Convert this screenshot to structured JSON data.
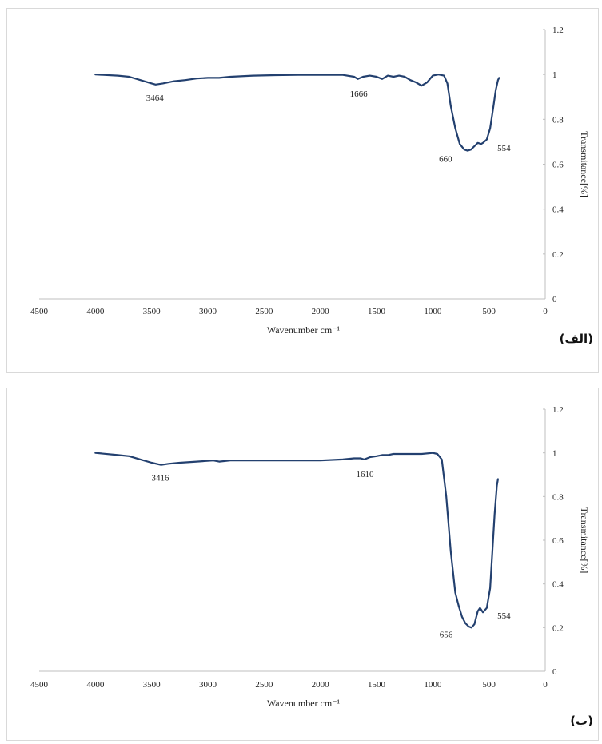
{
  "chart_data": [
    {
      "type": "line",
      "panel_label": "(الف)",
      "xlabel": "Wavenumber cm⁻¹",
      "ylabel": "Transmitance[%]",
      "xlim": [
        4500,
        0
      ],
      "ylim": [
        0,
        1.2
      ],
      "x_ticks": [
        4500,
        4000,
        3500,
        3000,
        2500,
        2000,
        1500,
        1000,
        500,
        0
      ],
      "y_ticks": [
        0,
        0.2,
        0.4,
        0.6,
        0.8,
        1,
        1.2
      ],
      "line_color": "#23406f",
      "series": [
        {
          "x": [
            4000,
            3800,
            3700,
            3600,
            3500,
            3464,
            3400,
            3300,
            3200,
            3100,
            3000,
            2900,
            2800,
            2600,
            2400,
            2200,
            2000,
            1800,
            1700,
            1666,
            1620,
            1560,
            1500,
            1450,
            1400,
            1350,
            1300,
            1250,
            1200,
            1150,
            1100,
            1050,
            1000,
            950,
            900,
            870,
            840,
            800,
            760,
            720,
            690,
            660,
            640,
            620,
            600,
            570,
            554,
            520,
            490,
            460,
            440,
            420,
            410
          ],
          "y": [
            1.0,
            0.995,
            0.99,
            0.975,
            0.96,
            0.955,
            0.96,
            0.97,
            0.975,
            0.982,
            0.985,
            0.985,
            0.99,
            0.995,
            0.997,
            0.998,
            0.998,
            0.998,
            0.99,
            0.98,
            0.99,
            0.995,
            0.99,
            0.98,
            0.995,
            0.99,
            0.995,
            0.99,
            0.975,
            0.965,
            0.95,
            0.965,
            0.995,
            1.0,
            0.995,
            0.96,
            0.86,
            0.76,
            0.69,
            0.665,
            0.66,
            0.665,
            0.675,
            0.685,
            0.695,
            0.69,
            0.695,
            0.71,
            0.76,
            0.86,
            0.93,
            0.975,
            0.985
          ]
        }
      ],
      "annotations": [
        {
          "text": "3464",
          "x": 3464,
          "y": 0.955
        },
        {
          "text": "1666",
          "x": 1666,
          "y": 0.98
        },
        {
          "text": "660",
          "x": 660,
          "y": 0.66
        },
        {
          "text": "554",
          "x": 554,
          "y": 0.695
        }
      ]
    },
    {
      "type": "line",
      "panel_label": "(ب)",
      "xlabel": "Wavenumber cm⁻¹",
      "ylabel": "Transmitance[%]",
      "xlim": [
        4500,
        0
      ],
      "ylim": [
        0,
        1.2
      ],
      "x_ticks": [
        4500,
        4000,
        3500,
        3000,
        2500,
        2000,
        1500,
        1000,
        500,
        0
      ],
      "y_ticks": [
        0,
        0.2,
        0.4,
        0.6,
        0.8,
        1,
        1.2
      ],
      "line_color": "#23406f",
      "series": [
        {
          "x": [
            4000,
            3800,
            3700,
            3600,
            3500,
            3416,
            3350,
            3250,
            3100,
            2950,
            2900,
            2800,
            2600,
            2400,
            2200,
            2000,
            1800,
            1700,
            1640,
            1610,
            1560,
            1500,
            1450,
            1400,
            1350,
            1300,
            1200,
            1100,
            1000,
            960,
            920,
            880,
            840,
            800,
            770,
            740,
            710,
            680,
            656,
            630,
            600,
            580,
            554,
            520,
            490,
            470,
            450,
            430,
            420
          ],
          "y": [
            1.0,
            0.99,
            0.985,
            0.97,
            0.955,
            0.945,
            0.95,
            0.955,
            0.96,
            0.965,
            0.96,
            0.965,
            0.965,
            0.965,
            0.965,
            0.965,
            0.97,
            0.975,
            0.975,
            0.97,
            0.98,
            0.985,
            0.99,
            0.99,
            0.995,
            0.995,
            0.995,
            0.995,
            1.0,
            0.995,
            0.97,
            0.8,
            0.55,
            0.36,
            0.3,
            0.25,
            0.22,
            0.205,
            0.2,
            0.215,
            0.275,
            0.29,
            0.27,
            0.29,
            0.38,
            0.55,
            0.72,
            0.85,
            0.88
          ]
        }
      ],
      "annotations": [
        {
          "text": "3416",
          "x": 3416,
          "y": 0.945
        },
        {
          "text": "1610",
          "x": 1610,
          "y": 0.97
        },
        {
          "text": "656",
          "x": 656,
          "y": 0.2
        },
        {
          "text": "554",
          "x": 554,
          "y": 0.27
        }
      ]
    }
  ]
}
